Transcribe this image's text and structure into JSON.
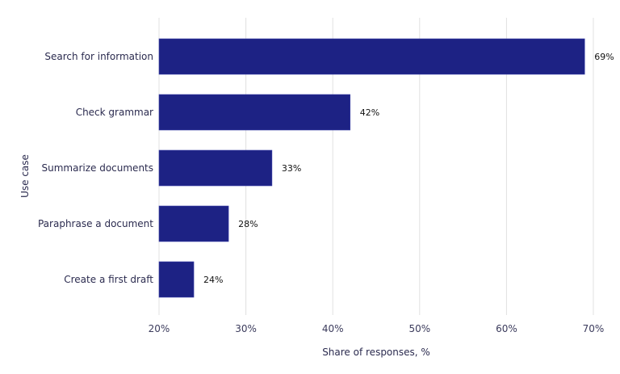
{
  "chart_data": {
    "type": "bar",
    "orientation": "horizontal",
    "categories": [
      "Search for information",
      "Check grammar",
      "Summarize documents",
      "Paraphrase a document",
      "Create a first draft"
    ],
    "values": [
      69,
      42,
      33,
      28,
      24
    ],
    "data_labels": [
      "69%",
      "42%",
      "33%",
      "28%",
      "24%"
    ],
    "xlabel": "Share of responses, %",
    "ylabel": "Use case",
    "xlim": [
      20,
      70
    ],
    "xticks": [
      20,
      30,
      40,
      50,
      60,
      70
    ],
    "xtick_labels": [
      "20%",
      "30%",
      "40%",
      "50%",
      "60%",
      "70%"
    ],
    "grid": "vertical",
    "bar_color": "#1d2284"
  }
}
